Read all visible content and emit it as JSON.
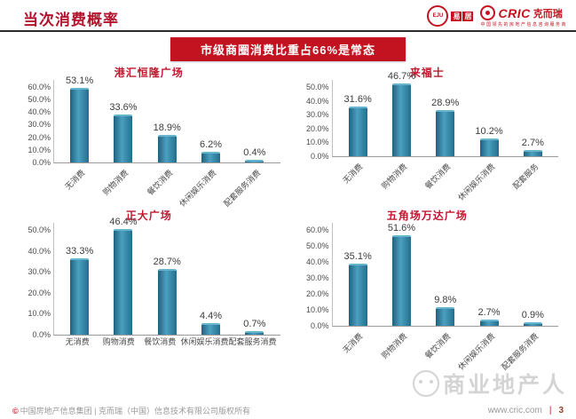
{
  "header": {
    "title": "当次消费概率"
  },
  "logos": {
    "eju_circle": "EJU",
    "eju_char1": "易",
    "eju_char2": "居",
    "cric_word": "CRIC",
    "cric_suffix": "克而瑞",
    "cric_tagline": "中国领先的房地产信息咨询服务商"
  },
  "banner": {
    "text": "市级商圈消费比重占66%是常态"
  },
  "colors": {
    "accent_red": "#c41320",
    "title_red": "#b5122d",
    "bar_teal": "#2b7b9c"
  },
  "watermark": {
    "text": "商业地产人"
  },
  "footer": {
    "copyright_mark": "©",
    "copyright": "中国房地产信息集团 | 克而瑞（中国）信息技术有限公司版权所有",
    "website": "www.cric.com",
    "page_separator": "|",
    "page": "3"
  },
  "chart_data": [
    {
      "type": "bar",
      "title": "港汇恒隆广场",
      "categories": [
        "无消费",
        "购物消费",
        "餐饮消费",
        "休闲娱乐消费",
        "配套服务消费"
      ],
      "values": [
        53.1,
        33.6,
        18.9,
        6.2,
        0.4
      ],
      "value_labels": [
        "53.1%",
        "33.6%",
        "18.9%",
        "6.2%",
        "0.4%"
      ],
      "ylim": [
        0,
        60
      ],
      "ytick_step": 10,
      "grid": false,
      "rotated_labels": true
    },
    {
      "type": "bar",
      "title": "来福士",
      "categories": [
        "无消费",
        "购物消费",
        "餐饮消费",
        "休闲娱乐消费",
        "配套服务"
      ],
      "values": [
        31.6,
        46.7,
        28.9,
        10.2,
        2.7
      ],
      "value_labels": [
        "31.6%",
        "46.7%",
        "28.9%",
        "10.2%",
        "2.7%"
      ],
      "ylim": [
        0,
        50
      ],
      "ytick_step": 10,
      "grid": false,
      "rotated_labels": true
    },
    {
      "type": "bar",
      "title": "正大广场",
      "categories": [
        "无消费",
        "购物消费",
        "餐饮消费",
        "休闲娱乐消费",
        "配套服务消费"
      ],
      "values": [
        33.3,
        46.4,
        28.7,
        4.4,
        0.7
      ],
      "value_labels": [
        "33.3%",
        "46.4%",
        "28.7%",
        "4.4%",
        "0.7%"
      ],
      "ylim": [
        0,
        50
      ],
      "ytick_step": 10,
      "grid": false,
      "rotated_labels": false
    },
    {
      "type": "bar",
      "title": "五角场万达广场",
      "categories": [
        "无消费",
        "购物消费",
        "餐饮消费",
        "休闲娱乐消费",
        "配套服务消费"
      ],
      "values": [
        35.1,
        51.6,
        9.8,
        2.7,
        0.9
      ],
      "value_labels": [
        "35.1%",
        "51.6%",
        "9.8%",
        "2.7%",
        "0.9%"
      ],
      "ylim": [
        0,
        60
      ],
      "ytick_step": 10,
      "grid": false,
      "rotated_labels": true
    }
  ]
}
